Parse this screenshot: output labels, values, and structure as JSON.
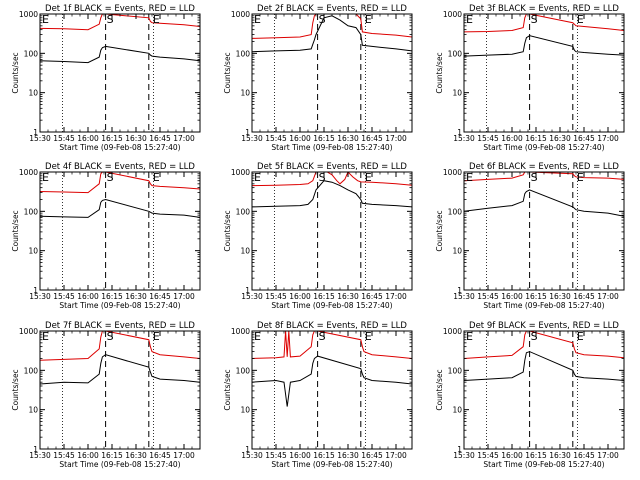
{
  "figure": {
    "xaxis_title": "Start Time (09-Feb-08 15:27:40)",
    "yaxis_title": "Counts/sec",
    "x_tick_labels": [
      "15:30",
      "15:45",
      "16:00",
      "16:15",
      "16:30",
      "16:45",
      "17:00"
    ],
    "y_tick_labels": [
      "1",
      "10",
      "100",
      "1000"
    ],
    "marker_labels": {
      "start": "S",
      "end": "E"
    },
    "colors": {
      "events": "#000000",
      "lld": "#dd0000",
      "axes": "#000000",
      "background": "#ffffff"
    }
  },
  "chart_data": [
    {
      "type": "line",
      "title": "Det 1f BLACK = Events, RED = LLD",
      "xlabel": "Start Time (09-Feb-08 15:27:40)",
      "ylabel": "Counts/sec",
      "yscale": "log",
      "ylim": [
        1,
        1000
      ],
      "xlim": [
        "15:30",
        "17:10"
      ],
      "x_ticks": [
        "15:30",
        "15:45",
        "16:00",
        "16:15",
        "16:30",
        "16:45",
        "17:00"
      ],
      "markers": {
        "dotted": [
          "15:44",
          "16:41"
        ],
        "dashed": [
          "16:11",
          "16:38"
        ]
      },
      "series": [
        {
          "name": "Events",
          "color": "#000000",
          "x": [
            "15:30",
            "15:45",
            "16:00",
            "16:07",
            "16:08",
            "16:09",
            "16:11",
            "16:38",
            "16:39",
            "16:40",
            "16:45",
            "17:00",
            "17:10"
          ],
          "y": [
            65,
            62,
            58,
            80,
            120,
            140,
            150,
            100,
            90,
            85,
            80,
            72,
            65
          ]
        },
        {
          "name": "LLD",
          "color": "#dd0000",
          "x": [
            "15:30",
            "15:45",
            "16:00",
            "16:07",
            "16:08",
            "16:09",
            "16:11",
            "16:38",
            "16:39",
            "16:40",
            "16:45",
            "17:00",
            "17:10"
          ],
          "y": [
            430,
            420,
            400,
            550,
            800,
            1000,
            1000,
            800,
            650,
            600,
            580,
            530,
            480
          ]
        }
      ]
    },
    {
      "type": "line",
      "title": "Det 2f BLACK = Events, RED = LLD",
      "xlabel": "Start Time (09-Feb-08 15:27:40)",
      "ylabel": "Counts/sec",
      "yscale": "log",
      "ylim": [
        1,
        1000
      ],
      "xlim": [
        "15:30",
        "17:10"
      ],
      "x_ticks": [
        "15:30",
        "15:45",
        "16:00",
        "16:15",
        "16:30",
        "16:45",
        "17:00"
      ],
      "markers": {
        "dotted": [
          "15:44",
          "16:41"
        ],
        "dashed": [
          "16:11",
          "16:38"
        ]
      },
      "series": [
        {
          "name": "Events",
          "color": "#000000",
          "x": [
            "15:30",
            "15:45",
            "16:00",
            "16:07",
            "16:08",
            "16:09",
            "16:10",
            "16:15",
            "16:20",
            "16:25",
            "16:30",
            "16:35",
            "16:38",
            "16:39",
            "16:45",
            "17:00",
            "17:10"
          ],
          "y": [
            110,
            115,
            120,
            130,
            170,
            220,
            300,
            800,
            900,
            700,
            500,
            450,
            300,
            160,
            150,
            130,
            115
          ]
        },
        {
          "name": "LLD",
          "color": "#dd0000",
          "x": [
            "15:30",
            "15:45",
            "16:00",
            "16:07",
            "16:08",
            "16:09",
            "16:10",
            "16:15",
            "16:20",
            "16:25",
            "16:30",
            "16:35",
            "16:38",
            "16:39",
            "16:45",
            "17:00",
            "17:10"
          ],
          "y": [
            240,
            250,
            260,
            300,
            600,
            900,
            1000,
            1000,
            1000,
            1000,
            1000,
            1000,
            750,
            350,
            320,
            290,
            260
          ]
        }
      ]
    },
    {
      "type": "line",
      "title": "Det 3f BLACK = Events, RED = LLD",
      "xlabel": "Start Time (09-Feb-08 15:27:40)",
      "ylabel": "Counts/sec",
      "yscale": "log",
      "ylim": [
        1,
        1000
      ],
      "xlim": [
        "15:30",
        "17:10"
      ],
      "x_ticks": [
        "15:30",
        "15:45",
        "16:00",
        "16:15",
        "16:30",
        "16:45",
        "17:00"
      ],
      "markers": {
        "dotted": [
          "15:44",
          "16:41"
        ],
        "dashed": [
          "16:11",
          "16:38"
        ]
      },
      "series": [
        {
          "name": "Events",
          "color": "#000000",
          "x": [
            "15:30",
            "15:45",
            "16:00",
            "16:07",
            "16:08",
            "16:09",
            "16:11",
            "16:38",
            "16:39",
            "16:40",
            "16:45",
            "17:00",
            "17:10"
          ],
          "y": [
            85,
            90,
            95,
            110,
            180,
            250,
            280,
            150,
            120,
            110,
            105,
            95,
            90
          ]
        },
        {
          "name": "LLD",
          "color": "#dd0000",
          "x": [
            "15:30",
            "15:45",
            "16:00",
            "16:07",
            "16:08",
            "16:09",
            "16:11",
            "16:38",
            "16:39",
            "16:40",
            "16:45",
            "17:00",
            "17:10"
          ],
          "y": [
            350,
            360,
            380,
            450,
            800,
            1000,
            1000,
            600,
            550,
            500,
            480,
            420,
            380
          ]
        }
      ]
    },
    {
      "type": "line",
      "title": "Det 4f BLACK = Events, RED = LLD",
      "xlabel": "Start Time (09-Feb-08 15:27:40)",
      "ylabel": "Counts/sec",
      "yscale": "log",
      "ylim": [
        1,
        1000
      ],
      "xlim": [
        "15:30",
        "17:10"
      ],
      "x_ticks": [
        "15:30",
        "15:45",
        "16:00",
        "16:15",
        "16:30",
        "16:45",
        "17:00"
      ],
      "markers": {
        "dotted": [
          "15:44",
          "16:41"
        ],
        "dashed": [
          "16:11",
          "16:38"
        ]
      },
      "series": [
        {
          "name": "Events",
          "color": "#000000",
          "x": [
            "15:30",
            "15:45",
            "16:00",
            "16:07",
            "16:08",
            "16:09",
            "16:11",
            "16:38",
            "16:39",
            "16:40",
            "16:45",
            "17:00",
            "17:10"
          ],
          "y": [
            75,
            72,
            70,
            110,
            170,
            190,
            200,
            100,
            95,
            90,
            85,
            80,
            70
          ]
        },
        {
          "name": "LLD",
          "color": "#dd0000",
          "x": [
            "15:30",
            "15:45",
            "16:00",
            "16:07",
            "16:08",
            "16:09",
            "16:11",
            "16:38",
            "16:39",
            "16:40",
            "16:45",
            "17:00",
            "17:10"
          ],
          "y": [
            320,
            310,
            300,
            500,
            900,
            1000,
            1000,
            600,
            500,
            450,
            430,
            400,
            370
          ]
        }
      ]
    },
    {
      "type": "line",
      "title": "Det 5f BLACK = Events, RED = LLD",
      "xlabel": "Start Time (09-Feb-08 15:27:40)",
      "ylabel": "Counts/sec",
      "yscale": "log",
      "ylim": [
        1,
        1000
      ],
      "xlim": [
        "15:30",
        "17:10"
      ],
      "x_ticks": [
        "15:30",
        "15:45",
        "16:00",
        "16:15",
        "16:30",
        "16:45",
        "17:00"
      ],
      "markers": {
        "dotted": [
          "15:44",
          "16:41"
        ],
        "dashed": [
          "16:11",
          "16:38"
        ]
      },
      "series": [
        {
          "name": "Events",
          "color": "#000000",
          "x": [
            "15:30",
            "15:45",
            "16:00",
            "16:05",
            "16:08",
            "16:10",
            "16:15",
            "16:20",
            "16:25",
            "16:30",
            "16:35",
            "16:38",
            "16:39",
            "16:45",
            "17:00",
            "17:10"
          ],
          "y": [
            130,
            135,
            140,
            150,
            200,
            350,
            600,
            550,
            450,
            350,
            280,
            200,
            160,
            150,
            140,
            130
          ]
        },
        {
          "name": "LLD",
          "color": "#dd0000",
          "x": [
            "15:30",
            "15:45",
            "16:00",
            "16:05",
            "16:08",
            "16:10",
            "16:15",
            "16:17",
            "16:20",
            "16:23",
            "16:25",
            "16:28",
            "16:30",
            "16:33",
            "16:36",
            "16:38",
            "16:45",
            "17:00",
            "17:10"
          ],
          "y": [
            450,
            460,
            480,
            500,
            600,
            1000,
            1000,
            1000,
            850,
            600,
            500,
            650,
            1000,
            750,
            600,
            560,
            550,
            500,
            460
          ]
        }
      ]
    },
    {
      "type": "line",
      "title": "Det 6f BLACK = Events, RED = LLD",
      "xlabel": "Start Time (09-Feb-08 15:27:40)",
      "ylabel": "Counts/sec",
      "yscale": "log",
      "ylim": [
        1,
        1000
      ],
      "xlim": [
        "15:30",
        "17:10"
      ],
      "x_ticks": [
        "15:30",
        "15:45",
        "16:00",
        "16:15",
        "16:30",
        "16:45",
        "17:00"
      ],
      "markers": {
        "dotted": [
          "15:44",
          "16:41"
        ],
        "dashed": [
          "16:11",
          "16:38"
        ]
      },
      "series": [
        {
          "name": "Events",
          "color": "#000000",
          "x": [
            "15:30",
            "15:45",
            "16:00",
            "16:07",
            "16:08",
            "16:09",
            "16:11",
            "16:38",
            "16:39",
            "16:40",
            "16:45",
            "17:00",
            "17:10"
          ],
          "y": [
            100,
            120,
            140,
            180,
            280,
            320,
            350,
            130,
            120,
            110,
            100,
            90,
            75
          ]
        },
        {
          "name": "LLD",
          "color": "#dd0000",
          "x": [
            "15:30",
            "15:45",
            "16:00",
            "16:07",
            "16:08",
            "16:09",
            "16:11",
            "16:38",
            "16:39",
            "16:40",
            "16:45",
            "17:00",
            "17:10"
          ],
          "y": [
            600,
            650,
            700,
            850,
            1000,
            1000,
            1000,
            900,
            800,
            750,
            720,
            700,
            650
          ]
        }
      ]
    },
    {
      "type": "line",
      "title": "Det 7f BLACK = Events, RED = LLD",
      "xlabel": "Start Time (09-Feb-08 15:27:40)",
      "ylabel": "Counts/sec",
      "yscale": "log",
      "ylim": [
        1,
        1000
      ],
      "xlim": [
        "15:30",
        "17:10"
      ],
      "x_ticks": [
        "15:30",
        "15:45",
        "16:00",
        "16:15",
        "16:30",
        "16:45",
        "17:00"
      ],
      "markers": {
        "dotted": [
          "15:44",
          "16:41"
        ],
        "dashed": [
          "16:11",
          "16:38"
        ]
      },
      "series": [
        {
          "name": "Events",
          "color": "#000000",
          "x": [
            "15:30",
            "15:45",
            "16:00",
            "16:07",
            "16:08",
            "16:09",
            "16:11",
            "16:38",
            "16:39",
            "16:40",
            "16:45",
            "17:00",
            "17:10"
          ],
          "y": [
            45,
            50,
            48,
            80,
            150,
            220,
            250,
            120,
            90,
            70,
            60,
            55,
            50
          ]
        },
        {
          "name": "LLD",
          "color": "#dd0000",
          "x": [
            "15:30",
            "15:45",
            "16:00",
            "16:07",
            "16:08",
            "16:09",
            "16:11",
            "16:38",
            "16:39",
            "16:40",
            "16:45",
            "17:00",
            "17:10"
          ],
          "y": [
            180,
            190,
            200,
            350,
            700,
            1000,
            1000,
            600,
            400,
            300,
            250,
            220,
            200
          ]
        }
      ]
    },
    {
      "type": "line",
      "title": "Det 8f BLACK = Events, RED = LLD",
      "xlabel": "Start Time (09-Feb-08 15:27:40)",
      "ylabel": "Counts/sec",
      "yscale": "log",
      "ylim": [
        1,
        1000
      ],
      "xlim": [
        "15:30",
        "17:10"
      ],
      "x_ticks": [
        "15:30",
        "15:45",
        "16:00",
        "16:15",
        "16:30",
        "16:45",
        "17:00"
      ],
      "markers": {
        "dotted": [
          "15:44",
          "16:41"
        ],
        "dashed": [
          "16:11",
          "16:38"
        ]
      },
      "series": [
        {
          "name": "Events",
          "color": "#000000",
          "x": [
            "15:30",
            "15:45",
            "15:50",
            "15:52",
            "15:54",
            "16:00",
            "16:07",
            "16:08",
            "16:09",
            "16:11",
            "16:38",
            "16:39",
            "16:40",
            "16:45",
            "17:00",
            "17:10"
          ],
          "y": [
            50,
            55,
            50,
            12,
            50,
            55,
            80,
            150,
            200,
            230,
            110,
            80,
            65,
            55,
            50,
            45
          ]
        },
        {
          "name": "LLD",
          "color": "#dd0000",
          "x": [
            "15:30",
            "15:45",
            "15:50",
            "15:51",
            "15:52",
            "15:53",
            "15:54",
            "16:00",
            "16:07",
            "16:08",
            "16:09",
            "16:11",
            "16:38",
            "16:39",
            "16:40",
            "16:45",
            "17:00",
            "17:10"
          ],
          "y": [
            200,
            210,
            220,
            1000,
            220,
            1000,
            220,
            230,
            400,
            800,
            1000,
            1000,
            600,
            400,
            300,
            250,
            220,
            200
          ]
        }
      ]
    },
    {
      "type": "line",
      "title": "Det 9f BLACK = Events, RED = LLD",
      "xlabel": "Start Time (09-Feb-08 15:27:40)",
      "ylabel": "Counts/sec",
      "yscale": "log",
      "ylim": [
        1,
        1000
      ],
      "xlim": [
        "15:30",
        "17:10"
      ],
      "x_ticks": [
        "15:30",
        "15:45",
        "16:00",
        "16:15",
        "16:30",
        "16:45",
        "17:00"
      ],
      "markers": {
        "dotted": [
          "15:44",
          "16:41"
        ],
        "dashed": [
          "16:11",
          "16:38"
        ]
      },
      "series": [
        {
          "name": "Events",
          "color": "#000000",
          "x": [
            "15:30",
            "15:45",
            "16:00",
            "16:07",
            "16:08",
            "16:09",
            "16:11",
            "16:38",
            "16:39",
            "16:40",
            "16:45",
            "17:00",
            "17:10"
          ],
          "y": [
            55,
            60,
            65,
            90,
            180,
            280,
            300,
            100,
            80,
            70,
            65,
            60,
            55
          ]
        },
        {
          "name": "LLD",
          "color": "#dd0000",
          "x": [
            "15:30",
            "15:45",
            "16:00",
            "16:07",
            "16:08",
            "16:09",
            "16:11",
            "16:38",
            "16:39",
            "16:40",
            "16:45",
            "17:00",
            "17:10"
          ],
          "y": [
            200,
            220,
            240,
            400,
            800,
            1000,
            1000,
            500,
            350,
            280,
            250,
            230,
            210
          ]
        }
      ]
    }
  ]
}
